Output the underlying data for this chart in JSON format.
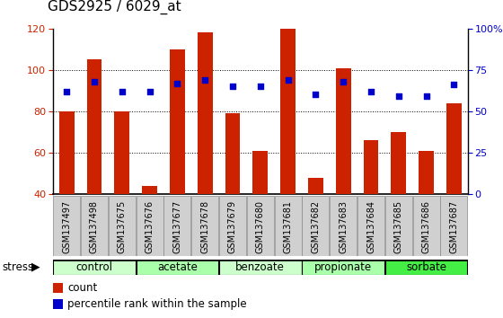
{
  "title": "GDS2925 / 6029_at",
  "samples": [
    "GSM137497",
    "GSM137498",
    "GSM137675",
    "GSM137676",
    "GSM137677",
    "GSM137678",
    "GSM137679",
    "GSM137680",
    "GSM137681",
    "GSM137682",
    "GSM137683",
    "GSM137684",
    "GSM137685",
    "GSM137686",
    "GSM137687"
  ],
  "counts": [
    80,
    105,
    80,
    44,
    110,
    118,
    79,
    61,
    120,
    48,
    101,
    66,
    70,
    61,
    84
  ],
  "percentile_ranks": [
    62,
    68,
    62,
    62,
    67,
    69,
    65,
    65,
    69,
    60,
    68,
    62,
    59,
    59,
    66
  ],
  "groups": [
    {
      "label": "control",
      "indices": [
        0,
        1,
        2
      ],
      "color": "#ccffcc"
    },
    {
      "label": "acetate",
      "indices": [
        3,
        4,
        5
      ],
      "color": "#aaffaa"
    },
    {
      "label": "benzoate",
      "indices": [
        6,
        7,
        8
      ],
      "color": "#ccffcc"
    },
    {
      "label": "propionate",
      "indices": [
        9,
        10,
        11
      ],
      "color": "#aaffaa"
    },
    {
      "label": "sorbate",
      "indices": [
        12,
        13,
        14
      ],
      "color": "#44ee44"
    }
  ],
  "ylim_left": [
    40,
    120
  ],
  "yticks_left": [
    40,
    60,
    80,
    100,
    120
  ],
  "ylim_right": [
    0,
    100
  ],
  "yticks_right": [
    0,
    25,
    50,
    75,
    100
  ],
  "yticklabels_right": [
    "0",
    "25",
    "50",
    "75",
    "100%"
  ],
  "bar_color": "#cc2200",
  "dot_color": "#0000cc",
  "bar_bottom": 40,
  "left_tick_color": "#cc2200",
  "right_tick_color": "#0000cc",
  "stress_label": "stress",
  "legend_count": "count",
  "legend_pct": "percentile rank within the sample",
  "group_label_fontsize": 8.5,
  "sample_tick_fontsize": 7,
  "title_fontsize": 11,
  "fig_bg": "#ffffff",
  "plot_bg": "#ffffff",
  "xtick_box_color": "#d0d0d0",
  "group_border_color": "#000000"
}
